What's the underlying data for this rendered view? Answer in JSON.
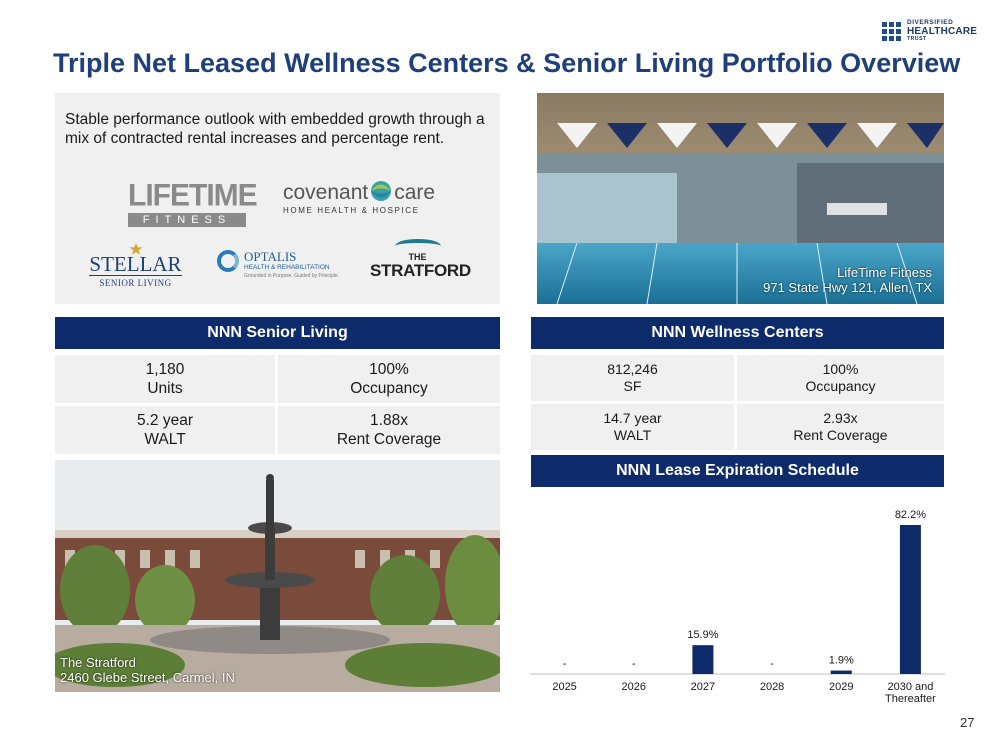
{
  "brand": {
    "line1": "DIVERSIFIED",
    "line2": "HEALTHCARE",
    "line3": "TRUST"
  },
  "title": "Triple Net Leased Wellness Centers & Senior Living Portfolio Overview",
  "intro": {
    "text": "Stable performance outlook with embedded growth through a mix of contracted rental increases and percentage rent."
  },
  "tenants": {
    "lifetime": {
      "top": "LIFETIME",
      "bottom": "FITNESS"
    },
    "covenant": {
      "top_a": "covenant",
      "top_b": "care",
      "bottom": "HOME HEALTH & HOSPICE"
    },
    "stellar": {
      "top": "STELLAR",
      "bottom": "SENIOR LIVING"
    },
    "optalis": {
      "top": "OPTALIS",
      "middle": "HEALTH & REHABILITATION",
      "bottom": "Grounded in Purpose. Guided by Principle."
    },
    "stratford": {
      "top": "THE",
      "bottom": "STRATFORD"
    }
  },
  "photos": {
    "fitness": {
      "line1": "LifeTime Fitness",
      "line2": "971 State Hwy 121, Allen, TX"
    },
    "stratford": {
      "line1": "The Stratford",
      "line2": "2460 Glebe Street, Carmel, IN"
    }
  },
  "senior_living": {
    "header": "NNN Senior Living",
    "stats": [
      {
        "value": "1,180",
        "label": "Units"
      },
      {
        "value": "100%",
        "label": "Occupancy"
      },
      {
        "value": "5.2 year",
        "label": "WALT"
      },
      {
        "value": "1.88x",
        "label": "Rent Coverage"
      }
    ]
  },
  "wellness": {
    "header": "NNN Wellness Centers",
    "stats": [
      {
        "value": "812,246",
        "label": "SF"
      },
      {
        "value": "100%",
        "label": "Occupancy"
      },
      {
        "value": "14.7 year",
        "label": "WALT"
      },
      {
        "value": "2.93x",
        "label": "Rent Coverage"
      }
    ]
  },
  "expiration": {
    "header": "NNN Lease Expiration Schedule"
  },
  "chart_data": {
    "type": "bar",
    "title": "NNN Lease Expiration Schedule",
    "categories": [
      "2025",
      "2026",
      "2027",
      "2028",
      "2029",
      "2030 and Thereafter"
    ],
    "values": [
      0,
      0,
      15.9,
      0,
      1.9,
      82.2
    ],
    "data_labels": [
      "-",
      "-",
      "15.9%",
      "-",
      "1.9%",
      "82.2%"
    ],
    "unit": "%",
    "ylim": [
      0,
      82.2
    ],
    "grid": false,
    "bar_color": "#0d2a6b"
  },
  "page_number": "27"
}
